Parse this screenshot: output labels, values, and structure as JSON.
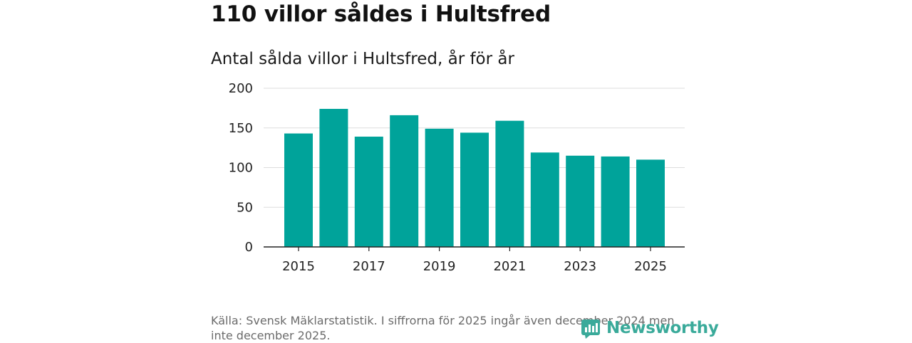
{
  "headline": "110 villor såldes i Hultsfred",
  "colors": {
    "bar": "#00a39a",
    "grid": "#dddddd",
    "axis": "#222222",
    "logo": "#3aaa9a"
  },
  "chart_data": {
    "type": "bar",
    "title": "Antal sålda villor i Hultsfred, år för år",
    "xlabel": "",
    "ylabel": "",
    "categories": [
      "2015",
      "2016",
      "2017",
      "2018",
      "2019",
      "2020",
      "2021",
      "2022",
      "2023",
      "2024",
      "2025"
    ],
    "values": [
      143,
      174,
      139,
      166,
      149,
      144,
      159,
      119,
      115,
      114,
      110
    ],
    "x_tick_labels": [
      "2015",
      "2017",
      "2019",
      "2021",
      "2023",
      "2025"
    ],
    "y_ticks": [
      0,
      50,
      100,
      150,
      200
    ],
    "ylim": [
      0,
      200
    ],
    "grid": true
  },
  "source": "Källa: Svensk Mäklarstatistik. I siffrorna för 2025 ingår även december 2024 men inte december 2025.",
  "logo": {
    "text": "Newsworthy",
    "icon": "newsworthy-logo-icon"
  }
}
